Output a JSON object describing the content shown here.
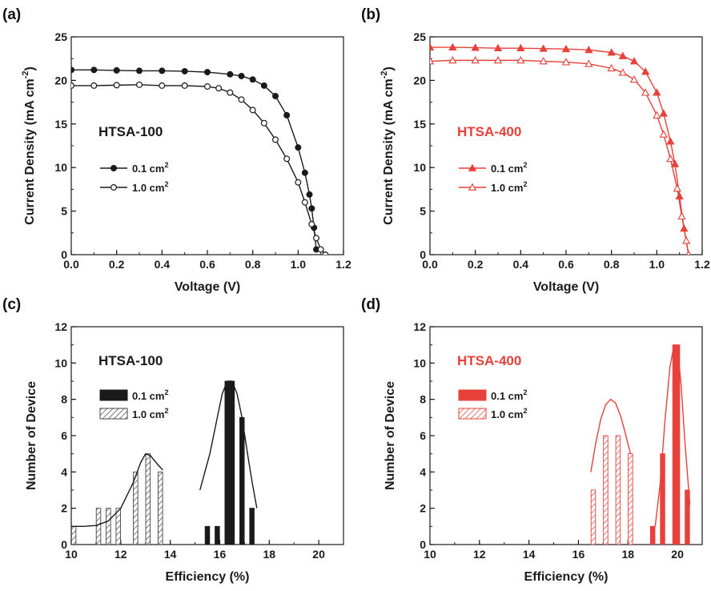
{
  "colors": {
    "black": "#1a1a1a",
    "red": "#e8403a"
  },
  "chart_data": [
    {
      "id": "a",
      "panel_label": "(a)",
      "type": "line",
      "title": "HTSA-100",
      "title_color": "#1a1a1a",
      "xlabel": "Voltage (V)",
      "ylabel": "Current Density (mA cm",
      "ylabel_sup": "-2",
      "ylabel_tail": ")",
      "xlim": [
        0,
        1.2
      ],
      "ylim": [
        0,
        25
      ],
      "xticks": [
        0.0,
        0.2,
        0.4,
        0.6,
        0.8,
        1.0,
        1.2
      ],
      "xtick_labels": [
        "0.0",
        "0.2",
        "0.4",
        "0.6",
        "0.8",
        "1.0",
        "1.2"
      ],
      "yticks": [
        0,
        5,
        10,
        15,
        20,
        25
      ],
      "ytick_labels": [
        "0",
        "5",
        "10",
        "15",
        "20",
        "25"
      ],
      "grid": false,
      "legend_position": "center-left",
      "series": [
        {
          "name": "0.1 cm",
          "name_sup": "2",
          "color": "#1a1a1a",
          "marker": "circle",
          "filled": true,
          "x": [
            0.0,
            0.1,
            0.2,
            0.3,
            0.4,
            0.5,
            0.6,
            0.7,
            0.75,
            0.8,
            0.85,
            0.9,
            0.95,
            1.0,
            1.03,
            1.05,
            1.06,
            1.07,
            1.08
          ],
          "y": [
            21.2,
            21.2,
            21.15,
            21.1,
            21.1,
            21.05,
            20.95,
            20.7,
            20.5,
            20.1,
            19.4,
            18.2,
            16.0,
            12.3,
            9.4,
            6.9,
            5.3,
            3.1,
            0.6
          ]
        },
        {
          "name": "1.0 cm",
          "name_sup": "2",
          "color": "#1a1a1a",
          "marker": "circle",
          "filled": false,
          "x": [
            0.0,
            0.1,
            0.2,
            0.3,
            0.4,
            0.5,
            0.6,
            0.65,
            0.7,
            0.75,
            0.8,
            0.85,
            0.9,
            0.95,
            1.0,
            1.03,
            1.06,
            1.08,
            1.1,
            1.12
          ],
          "y": [
            19.4,
            19.4,
            19.45,
            19.5,
            19.4,
            19.4,
            19.3,
            19.1,
            18.6,
            17.8,
            16.6,
            15.1,
            13.2,
            11.0,
            8.3,
            6.0,
            3.5,
            1.9,
            0.6,
            0.0
          ]
        }
      ]
    },
    {
      "id": "b",
      "panel_label": "(b)",
      "type": "line",
      "title": "HTSA-400",
      "title_color": "#e8403a",
      "xlabel": "Voltage (V)",
      "ylabel": "Current Density (mA cm",
      "ylabel_sup": "-2",
      "ylabel_tail": ")",
      "xlim": [
        0,
        1.2
      ],
      "ylim": [
        0,
        25
      ],
      "xticks": [
        0.0,
        0.2,
        0.4,
        0.6,
        0.8,
        1.0,
        1.2
      ],
      "xtick_labels": [
        "0.0",
        "0.2",
        "0.4",
        "0.6",
        "0.8",
        "1.0",
        "1.2"
      ],
      "yticks": [
        0,
        5,
        10,
        15,
        20,
        25
      ],
      "ytick_labels": [
        "0",
        "5",
        "10",
        "15",
        "20",
        "25"
      ],
      "grid": false,
      "legend_position": "center-left",
      "series": [
        {
          "name": "0.1 cm",
          "name_sup": "2",
          "color": "#e8403a",
          "marker": "triangle",
          "filled": true,
          "x": [
            0.0,
            0.1,
            0.2,
            0.3,
            0.4,
            0.5,
            0.6,
            0.7,
            0.8,
            0.85,
            0.9,
            0.95,
            1.0,
            1.03,
            1.06,
            1.08,
            1.1,
            1.12,
            1.14
          ],
          "y": [
            23.8,
            23.8,
            23.75,
            23.7,
            23.7,
            23.65,
            23.6,
            23.5,
            23.2,
            22.8,
            22.2,
            21.0,
            18.6,
            16.2,
            13.0,
            10.4,
            6.7,
            3.0,
            0.0
          ]
        },
        {
          "name": "1.0 cm",
          "name_sup": "2",
          "color": "#e8403a",
          "marker": "triangle",
          "filled": false,
          "x": [
            0.0,
            0.1,
            0.2,
            0.3,
            0.4,
            0.5,
            0.6,
            0.7,
            0.8,
            0.85,
            0.9,
            0.95,
            1.0,
            1.03,
            1.06,
            1.09,
            1.11,
            1.13,
            1.14
          ],
          "y": [
            22.2,
            22.3,
            22.3,
            22.3,
            22.3,
            22.2,
            22.1,
            21.9,
            21.4,
            20.9,
            20.1,
            18.6,
            16.0,
            13.8,
            11.0,
            7.6,
            4.4,
            1.6,
            0.0
          ]
        }
      ]
    },
    {
      "id": "c",
      "panel_label": "(c)",
      "type": "bar",
      "title": "HTSA-100",
      "title_color": "#1a1a1a",
      "xlabel": "Efficiency (%)",
      "ylabel": "Number of Device",
      "xlim": [
        10,
        21
      ],
      "ylim": [
        0,
        12
      ],
      "xticks": [
        10,
        12,
        14,
        16,
        18,
        20
      ],
      "xtick_labels": [
        "10",
        "12",
        "14",
        "16",
        "18",
        "20"
      ],
      "yticks": [
        0,
        2,
        4,
        6,
        8,
        10,
        12
      ],
      "ytick_labels": [
        "0",
        "2",
        "4",
        "6",
        "8",
        "10",
        "12"
      ],
      "grid": false,
      "legend_position": "upper-left",
      "bar_width": 0.18,
      "series": [
        {
          "name": "0.1 cm",
          "name_sup": "2",
          "color": "#1a1a1a",
          "fill": "solid",
          "x": [
            15.5,
            15.9,
            16.3,
            16.5,
            16.9,
            17.3
          ],
          "values": [
            1,
            1,
            9,
            9,
            7,
            2
          ],
          "fit_x": [
            15.2,
            15.6,
            15.9,
            16.1,
            16.3,
            16.5,
            16.7,
            16.9,
            17.1,
            17.3,
            17.5
          ],
          "fit_y": [
            3.0,
            5.0,
            7.0,
            8.3,
            9.0,
            9.0,
            8.3,
            7.0,
            5.2,
            3.5,
            2.0
          ]
        },
        {
          "name": "1.0 cm",
          "name_sup": "2",
          "color": "#555555",
          "fill": "hatched",
          "x": [
            10.1,
            11.1,
            11.5,
            11.9,
            12.6,
            13.1,
            13.6
          ],
          "values": [
            1,
            2,
            2,
            2,
            4,
            5,
            4
          ],
          "fit_x": [
            10.0,
            10.5,
            11.0,
            11.5,
            12.0,
            12.5,
            12.8,
            13.0,
            13.2,
            13.5,
            13.7
          ],
          "fit_y": [
            1.0,
            1.0,
            1.05,
            1.3,
            2.0,
            3.4,
            4.5,
            5.0,
            4.9,
            4.4,
            4.1
          ]
        }
      ]
    },
    {
      "id": "d",
      "panel_label": "(d)",
      "type": "bar",
      "title": "HTSA-400",
      "title_color": "#e8403a",
      "xlabel": "Efficiency (%)",
      "ylabel": "Number of Device",
      "xlim": [
        10,
        21
      ],
      "ylim": [
        0,
        12
      ],
      "xticks": [
        10,
        12,
        14,
        16,
        18,
        20
      ],
      "xtick_labels": [
        "10",
        "12",
        "14",
        "16",
        "18",
        "20"
      ],
      "yticks": [
        0,
        2,
        4,
        6,
        8,
        10,
        12
      ],
      "ytick_labels": [
        "0",
        "2",
        "4",
        "6",
        "8",
        "10",
        "12"
      ],
      "grid": false,
      "legend_position": "upper-left",
      "bar_width": 0.18,
      "series": [
        {
          "name": "0.1 cm",
          "name_sup": "2",
          "color": "#e8403a",
          "fill": "solid",
          "x": [
            19.0,
            19.4,
            19.9,
            20.0,
            20.4
          ],
          "values": [
            1,
            5,
            11,
            11,
            3
          ],
          "fit_x": [
            19.1,
            19.3,
            19.5,
            19.7,
            19.85,
            20.0,
            20.15,
            20.3,
            20.5
          ],
          "fit_y": [
            1.0,
            3.3,
            6.9,
            9.8,
            10.9,
            10.8,
            8.8,
            5.7,
            2.2
          ]
        },
        {
          "name": "1.0 cm",
          "name_sup": "2",
          "color": "#e8403a",
          "fill": "hatched",
          "x": [
            16.6,
            17.1,
            17.6,
            18.1
          ],
          "values": [
            3,
            6,
            6,
            5
          ],
          "fit_x": [
            16.5,
            16.7,
            16.9,
            17.1,
            17.3,
            17.5,
            17.7,
            17.9,
            18.1
          ],
          "fit_y": [
            4.0,
            5.6,
            6.9,
            7.7,
            8.0,
            7.8,
            7.1,
            6.1,
            5.0
          ]
        }
      ]
    }
  ]
}
